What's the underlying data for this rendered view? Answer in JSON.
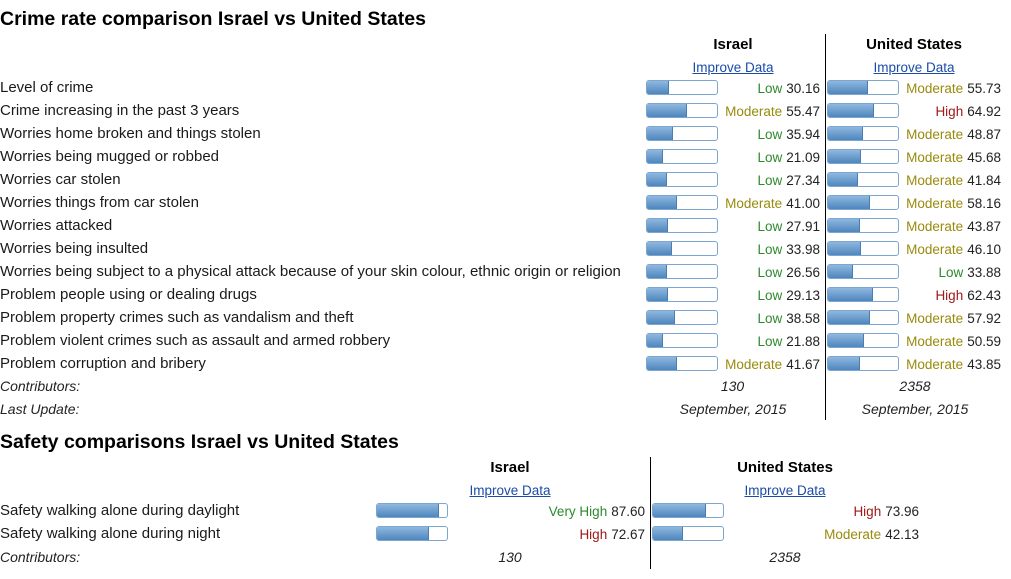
{
  "crime": {
    "title": "Crime rate comparison Israel vs United States",
    "col1": "Israel",
    "col2": "United States",
    "improve": "Improve Data",
    "rows": [
      {
        "label": "Level of crime",
        "a_level": "Low",
        "a_value": "30.16",
        "a_pct": 30.16,
        "b_level": "Moderate",
        "b_value": "55.73",
        "b_pct": 55.73
      },
      {
        "label": "Crime increasing in the past 3 years",
        "a_level": "Moderate",
        "a_value": "55.47",
        "a_pct": 55.47,
        "b_level": "High",
        "b_value": "64.92",
        "b_pct": 64.92
      },
      {
        "label": "Worries home broken and things stolen",
        "a_level": "Low",
        "a_value": "35.94",
        "a_pct": 35.94,
        "b_level": "Moderate",
        "b_value": "48.87",
        "b_pct": 48.87
      },
      {
        "label": "Worries being mugged or robbed",
        "a_level": "Low",
        "a_value": "21.09",
        "a_pct": 21.09,
        "b_level": "Moderate",
        "b_value": "45.68",
        "b_pct": 45.68
      },
      {
        "label": "Worries car stolen",
        "a_level": "Low",
        "a_value": "27.34",
        "a_pct": 27.34,
        "b_level": "Moderate",
        "b_value": "41.84",
        "b_pct": 41.84
      },
      {
        "label": "Worries things from car stolen",
        "a_level": "Moderate",
        "a_value": "41.00",
        "a_pct": 41.0,
        "b_level": "Moderate",
        "b_value": "58.16",
        "b_pct": 58.16
      },
      {
        "label": "Worries attacked",
        "a_level": "Low",
        "a_value": "27.91",
        "a_pct": 27.91,
        "b_level": "Moderate",
        "b_value": "43.87",
        "b_pct": 43.87
      },
      {
        "label": "Worries being insulted",
        "a_level": "Low",
        "a_value": "33.98",
        "a_pct": 33.98,
        "b_level": "Moderate",
        "b_value": "46.10",
        "b_pct": 46.1
      },
      {
        "label": "Worries being subject to a physical attack because of your skin colour, ethnic origin or religion",
        "a_level": "Low",
        "a_value": "26.56",
        "a_pct": 26.56,
        "b_level": "Low",
        "b_value": "33.88",
        "b_pct": 33.88
      },
      {
        "label": "Problem people using or dealing drugs",
        "a_level": "Low",
        "a_value": "29.13",
        "a_pct": 29.13,
        "b_level": "High",
        "b_value": "62.43",
        "b_pct": 62.43
      },
      {
        "label": "Problem property crimes such as vandalism and theft",
        "a_level": "Low",
        "a_value": "38.58",
        "a_pct": 38.58,
        "b_level": "Moderate",
        "b_value": "57.92",
        "b_pct": 57.92
      },
      {
        "label": "Problem violent crimes such as assault and armed robbery",
        "a_level": "Low",
        "a_value": "21.88",
        "a_pct": 21.88,
        "b_level": "Moderate",
        "b_value": "50.59",
        "b_pct": 50.59
      },
      {
        "label": "Problem corruption and bribery",
        "a_level": "Moderate",
        "a_value": "41.67",
        "a_pct": 41.67,
        "b_level": "Moderate",
        "b_value": "43.85",
        "b_pct": 43.85
      }
    ],
    "contributors_label": "Contributors:",
    "contributors_a": "130",
    "contributors_b": "2358",
    "update_label": "Last Update:",
    "update_a": "September, 2015",
    "update_b": "September, 2015"
  },
  "safety": {
    "title": "Safety comparisons Israel vs United States",
    "col1": "Israel",
    "col2": "United States",
    "improve": "Improve Data",
    "rows": [
      {
        "label": "Safety walking alone during daylight",
        "a_level": "Very High",
        "a_value": "87.60",
        "a_pct": 87.6,
        "b_level": "High",
        "b_value": "73.96",
        "b_pct": 73.96
      },
      {
        "label": "Safety walking alone during night",
        "a_level": "High",
        "a_value": "72.67",
        "a_pct": 72.67,
        "b_level": "Moderate",
        "b_value": "42.13",
        "b_pct": 42.13
      }
    ],
    "contributors_label": "Contributors:",
    "contributors_a": "130",
    "contributors_b": "2358"
  },
  "colors": {
    "low": "#2c8a2c",
    "moderate": "#9a8a0c",
    "high": "#a01818",
    "link": "#1a4ba8",
    "bar": "#5b8fc4"
  }
}
